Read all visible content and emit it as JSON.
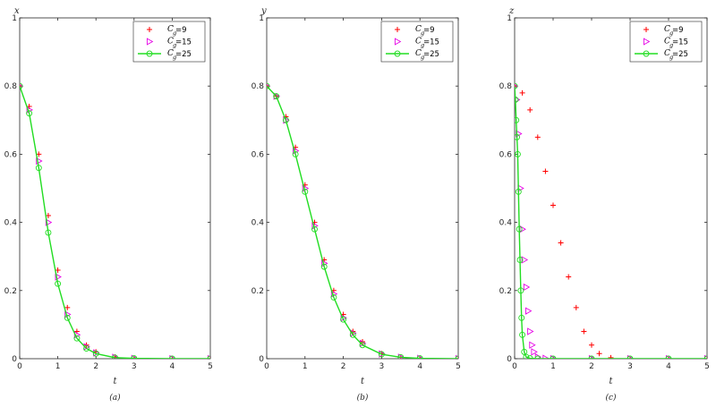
{
  "chart_data": [
    {
      "type": "line",
      "ylabel": "x",
      "xlabel": "t",
      "caption": "(a)",
      "xlim": [
        0,
        5
      ],
      "ylim": [
        0,
        1
      ],
      "xticks": [
        "0",
        "1",
        "2",
        "3",
        "4",
        "5"
      ],
      "yticks": [
        "0",
        "0.2",
        "0.4",
        "0.6",
        "0.8",
        "1"
      ],
      "legend": {
        "position": "top-right",
        "symbol": "C",
        "subscript": "g"
      },
      "series": [
        {
          "name": "=9",
          "color": "#ff0000",
          "marker": "plus",
          "line": false,
          "x": [
            0,
            0.25,
            0.5,
            0.75,
            1,
            1.25,
            1.5,
            1.75,
            2,
            2.5,
            3,
            4,
            5
          ],
          "y": [
            0.8,
            0.74,
            0.6,
            0.42,
            0.26,
            0.15,
            0.08,
            0.04,
            0.02,
            0.005,
            0.001,
            0,
            0
          ]
        },
        {
          "name": "=15",
          "color": "#e600e6",
          "marker": "triangle-right",
          "line": false,
          "x": [
            0,
            0.25,
            0.5,
            0.75,
            1,
            1.25,
            1.5,
            1.75,
            2,
            2.5,
            3,
            4,
            5
          ],
          "y": [
            0.8,
            0.73,
            0.58,
            0.4,
            0.24,
            0.13,
            0.07,
            0.035,
            0.017,
            0.004,
            0.001,
            0,
            0
          ]
        },
        {
          "name": "=25",
          "color": "#22dd22",
          "marker": "circle",
          "line": true,
          "x": [
            0,
            0.25,
            0.5,
            0.75,
            1,
            1.25,
            1.5,
            1.75,
            2,
            2.5,
            3,
            4,
            5
          ],
          "y": [
            0.8,
            0.72,
            0.56,
            0.37,
            0.22,
            0.12,
            0.06,
            0.03,
            0.015,
            0.003,
            0.001,
            0,
            0
          ]
        }
      ]
    },
    {
      "type": "line",
      "ylabel": "y",
      "xlabel": "t",
      "caption": "(b)",
      "xlim": [
        0,
        5
      ],
      "ylim": [
        0,
        1
      ],
      "xticks": [
        "0",
        "1",
        "2",
        "3",
        "4",
        "5"
      ],
      "yticks": [
        "0",
        "0.2",
        "0.4",
        "0.6",
        "0.8",
        "1"
      ],
      "legend": {
        "position": "top-right",
        "symbol": "C",
        "subscript": "g"
      },
      "series": [
        {
          "name": "=9",
          "color": "#ff0000",
          "marker": "plus",
          "line": false,
          "x": [
            0,
            0.25,
            0.5,
            0.75,
            1,
            1.25,
            1.5,
            1.75,
            2,
            2.25,
            2.5,
            3,
            3.5,
            4,
            5
          ],
          "y": [
            0.8,
            0.77,
            0.71,
            0.62,
            0.51,
            0.4,
            0.29,
            0.2,
            0.13,
            0.08,
            0.05,
            0.015,
            0.004,
            0.001,
            0
          ]
        },
        {
          "name": "=15",
          "color": "#e600e6",
          "marker": "triangle-right",
          "line": false,
          "x": [
            0,
            0.25,
            0.5,
            0.75,
            1,
            1.25,
            1.5,
            1.75,
            2,
            2.25,
            2.5,
            3,
            3.5,
            4,
            5
          ],
          "y": [
            0.8,
            0.77,
            0.7,
            0.61,
            0.5,
            0.39,
            0.28,
            0.19,
            0.12,
            0.075,
            0.045,
            0.014,
            0.004,
            0.001,
            0
          ]
        },
        {
          "name": "=25",
          "color": "#22dd22",
          "marker": "circle",
          "line": true,
          "x": [
            0,
            0.25,
            0.5,
            0.75,
            1,
            1.25,
            1.5,
            1.75,
            2,
            2.25,
            2.5,
            3,
            3.5,
            4,
            5
          ],
          "y": [
            0.8,
            0.77,
            0.7,
            0.6,
            0.49,
            0.38,
            0.27,
            0.18,
            0.115,
            0.07,
            0.04,
            0.013,
            0.004,
            0.001,
            0
          ]
        }
      ]
    },
    {
      "type": "line",
      "ylabel": "z",
      "xlabel": "t",
      "caption": "(c)",
      "xlim": [
        0,
        5
      ],
      "ylim": [
        0,
        1
      ],
      "xticks": [
        "0",
        "1",
        "2",
        "3",
        "4",
        "5"
      ],
      "yticks": [
        "0",
        "0.2",
        "0.4",
        "0.6",
        "0.8",
        "1"
      ],
      "legend": {
        "position": "top-right",
        "symbol": "C",
        "subscript": "g"
      },
      "series": [
        {
          "name": "=9",
          "color": "#ff0000",
          "marker": "plus",
          "line": false,
          "x": [
            0,
            0.2,
            0.4,
            0.6,
            0.8,
            1,
            1.2,
            1.4,
            1.6,
            1.8,
            2,
            2.2,
            2.5,
            3,
            4,
            5
          ],
          "y": [
            0.8,
            0.78,
            0.73,
            0.65,
            0.55,
            0.45,
            0.34,
            0.24,
            0.15,
            0.08,
            0.04,
            0.015,
            0.003,
            0,
            0,
            0
          ]
        },
        {
          "name": "=15",
          "color": "#e600e6",
          "marker": "triangle-right",
          "line": false,
          "x": [
            0,
            0.05,
            0.1,
            0.15,
            0.2,
            0.25,
            0.3,
            0.35,
            0.4,
            0.45,
            0.5,
            0.6,
            0.8,
            1,
            2,
            3,
            4,
            5
          ],
          "y": [
            0.8,
            0.76,
            0.66,
            0.5,
            0.38,
            0.29,
            0.21,
            0.14,
            0.08,
            0.04,
            0.02,
            0.005,
            0.001,
            0,
            0,
            0,
            0,
            0
          ]
        },
        {
          "name": "=25",
          "color": "#22dd22",
          "marker": "circle",
          "line": true,
          "x": [
            0,
            0.02,
            0.04,
            0.06,
            0.08,
            0.1,
            0.12,
            0.14,
            0.16,
            0.18,
            0.2,
            0.25,
            0.3,
            0.4,
            0.6,
            1,
            2,
            3,
            4,
            5
          ],
          "y": [
            0.8,
            0.76,
            0.7,
            0.65,
            0.6,
            0.49,
            0.38,
            0.29,
            0.2,
            0.12,
            0.07,
            0.02,
            0.005,
            0.001,
            0,
            0,
            0,
            0,
            0,
            0
          ]
        }
      ]
    }
  ]
}
